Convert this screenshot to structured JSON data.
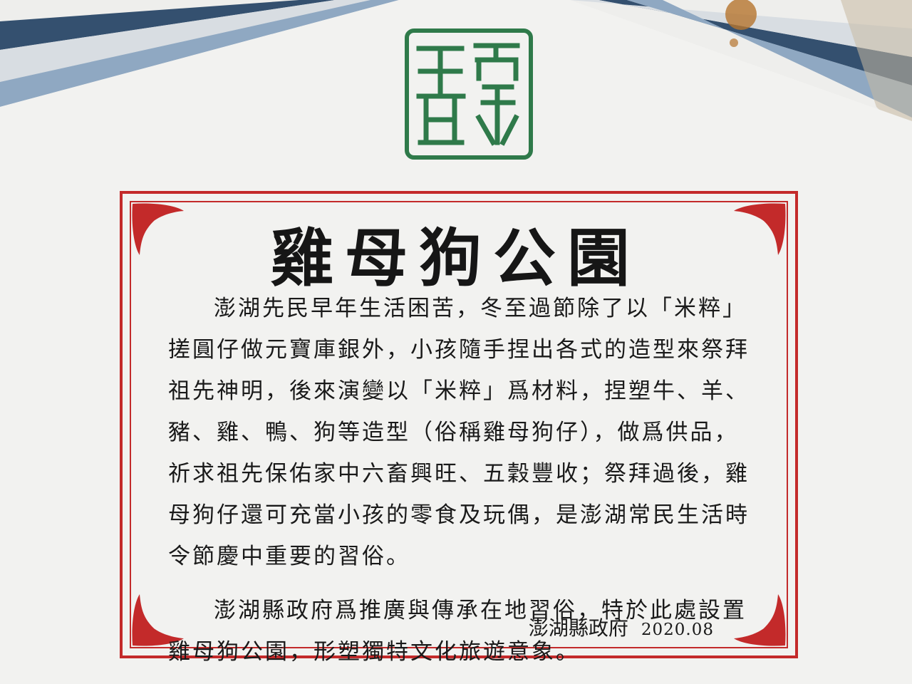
{
  "sign_board": {
    "seal_label": "澎湖",
    "title": "雞母狗公園",
    "body_paragraphs": [
      [
        "澎湖先民早年生活困苦，冬至過節除了以「米粹」",
        "搓圓仔做元寶庫銀外，小孩隨手捏出各式的造型來祭拜",
        "祖先神明，後來演變以「米粹」爲材料，捏塑牛、羊、",
        "豬、雞、鴨、狗等造型（俗稱雞母狗仔），做爲供品，",
        "祈求祖先保佑家中六畜興旺、五穀豐收；祭拜過後，雞",
        "母狗仔還可充當小孩的零食及玩偶，是澎湖常民生活時",
        "令節慶中重要的習俗。"
      ],
      [
        "澎湖縣政府爲推廣與傳承在地習俗，特於此處設置",
        "雞母狗公園，形塑獨特文化旅遊意象。"
      ]
    ],
    "signature": "澎湖縣政府",
    "date": "2020.08"
  },
  "colors": {
    "frame_red": "#c32a2a",
    "seal_green": "#2f7a4a",
    "stripe_blue": "#7f9dbb",
    "stripe_navy": "#34506f",
    "board_white": "#f4f4f2"
  },
  "icons": [
    "seal-icon",
    "corner-ornament-icon"
  ]
}
